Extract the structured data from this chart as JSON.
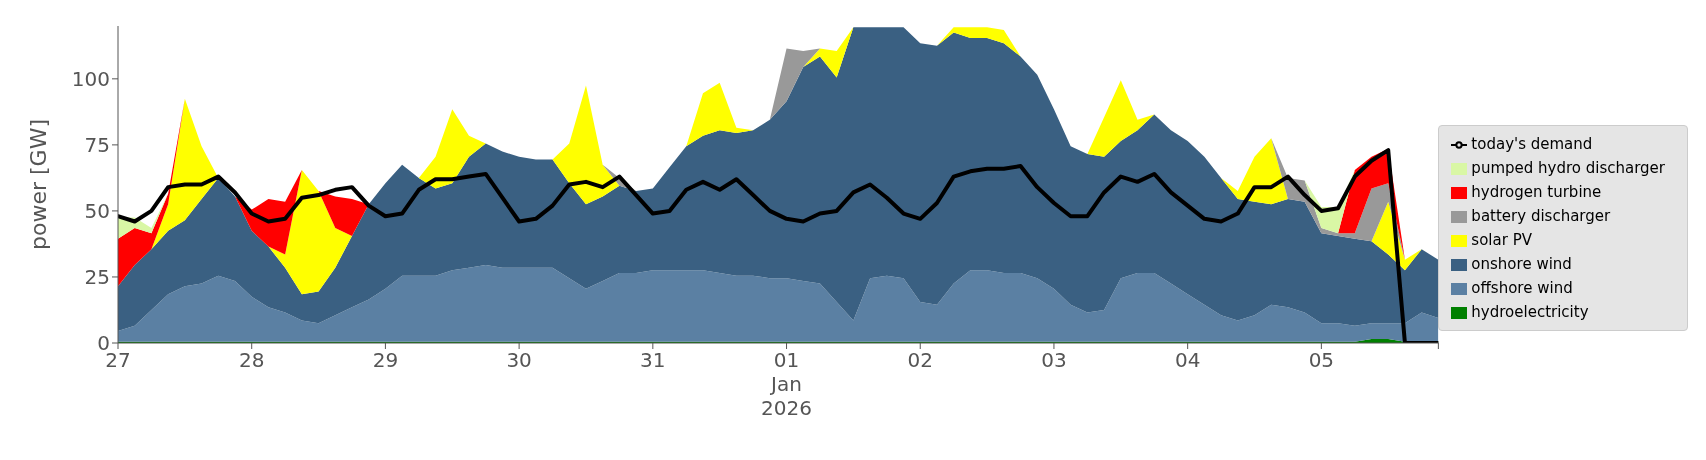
{
  "chart_data": {
    "type": "area",
    "stacked": true,
    "ylabel": "power [GW]",
    "legend": "right",
    "x": [
      "2025-12-27T00:00",
      "2025-12-27T03:00",
      "2025-12-27T06:00",
      "2025-12-27T09:00",
      "2025-12-27T12:00",
      "2025-12-27T15:00",
      "2025-12-27T18:00",
      "2025-12-27T21:00",
      "2025-12-28T00:00",
      "2025-12-28T03:00",
      "2025-12-28T06:00",
      "2025-12-28T09:00",
      "2025-12-28T12:00",
      "2025-12-28T15:00",
      "2025-12-28T18:00",
      "2025-12-28T21:00",
      "2025-12-29T00:00",
      "2025-12-29T03:00",
      "2025-12-29T06:00",
      "2025-12-29T09:00",
      "2025-12-29T12:00",
      "2025-12-29T15:00",
      "2025-12-29T18:00",
      "2025-12-29T21:00",
      "2025-12-30T00:00",
      "2025-12-30T03:00",
      "2025-12-30T06:00",
      "2025-12-30T09:00",
      "2025-12-30T12:00",
      "2025-12-30T15:00",
      "2025-12-30T18:00",
      "2025-12-30T21:00",
      "2025-12-31T00:00",
      "2025-12-31T03:00",
      "2025-12-31T06:00",
      "2025-12-31T09:00",
      "2025-12-31T12:00",
      "2025-12-31T15:00",
      "2025-12-31T18:00",
      "2025-12-31T21:00",
      "2026-01-01T00:00",
      "2026-01-01T03:00",
      "2026-01-01T06:00",
      "2026-01-01T09:00",
      "2026-01-01T12:00",
      "2026-01-01T15:00",
      "2026-01-01T18:00",
      "2026-01-01T21:00",
      "2026-01-02T00:00",
      "2026-01-02T03:00",
      "2026-01-02T06:00",
      "2026-01-02T09:00",
      "2026-01-02T12:00",
      "2026-01-02T15:00",
      "2026-01-02T18:00",
      "2026-01-02T21:00",
      "2026-01-03T00:00",
      "2026-01-03T03:00",
      "2026-01-03T06:00",
      "2026-01-03T09:00",
      "2026-01-03T12:00",
      "2026-01-03T15:00",
      "2026-01-03T18:00",
      "2026-01-03T21:00",
      "2026-01-04T00:00",
      "2026-01-04T03:00",
      "2026-01-04T06:00",
      "2026-01-04T09:00",
      "2026-01-04T12:00",
      "2026-01-04T15:00",
      "2026-01-04T18:00",
      "2026-01-04T21:00",
      "2026-01-05T00:00",
      "2026-01-05T03:00",
      "2026-01-05T06:00",
      "2026-01-05T09:00",
      "2026-01-05T12:00",
      "2026-01-05T15:00",
      "2026-01-05T18:00",
      "2026-01-05T21:00"
    ],
    "xlim": [
      "2025-12-27T00:00",
      "2026-01-05T21:00"
    ],
    "xticks": [
      {
        "value": "2025-12-27",
        "label": "27"
      },
      {
        "value": "2025-12-28",
        "label": "28"
      },
      {
        "value": "2025-12-29",
        "label": "29"
      },
      {
        "value": "2025-12-30",
        "label": "30"
      },
      {
        "value": "2025-12-31",
        "label": "31"
      },
      {
        "value": "2026-01-01",
        "label": "01\nJan\n2026"
      },
      {
        "value": "2026-01-02",
        "label": "02"
      },
      {
        "value": "2026-01-03",
        "label": "03"
      },
      {
        "value": "2026-01-04",
        "label": "04"
      },
      {
        "value": "2026-01-05",
        "label": "05"
      },
      {
        "value": "2026-01-05T21:00",
        "label": null
      }
    ],
    "ylim": [
      0,
      120
    ],
    "yticks": [
      0,
      25,
      50,
      75,
      100
    ],
    "series": [
      {
        "name": "hydroelectricity",
        "color": "#008000",
        "values": [
          0.5,
          0.5,
          0.5,
          0.5,
          0.5,
          0.5,
          0.5,
          0.5,
          0.5,
          0.5,
          0.5,
          0.5,
          0.5,
          0.5,
          0.5,
          0.5,
          0.5,
          0.5,
          0.5,
          0.5,
          0.5,
          0.5,
          0.5,
          0.5,
          0.5,
          0.5,
          0.5,
          0.5,
          0.5,
          0.5,
          0.5,
          0.5,
          0.5,
          0.5,
          0.5,
          0.5,
          0.5,
          0.5,
          0.5,
          0.5,
          0.5,
          0.5,
          0.5,
          0.5,
          0.5,
          0.5,
          0.5,
          0.5,
          0.5,
          0.5,
          0.5,
          0.5,
          0.5,
          0.5,
          0.5,
          0.5,
          0.5,
          0.5,
          0.5,
          0.5,
          0.5,
          0.5,
          0.5,
          0.5,
          0.5,
          0.5,
          0.5,
          0.5,
          0.5,
          0.5,
          0.5,
          0.5,
          0.5,
          0.5,
          0.5,
          1.5,
          1.5,
          0.5,
          0.5,
          0.5
        ]
      },
      {
        "name": "offshore wind",
        "color": "#5b80a3",
        "values": [
          4,
          6,
          12,
          18,
          21,
          22,
          25,
          23,
          17,
          13,
          11,
          8,
          7,
          10,
          13,
          16,
          20,
          25,
          25,
          25,
          27,
          28,
          29,
          28,
          28,
          28,
          28,
          24,
          20,
          23,
          26,
          26,
          27,
          27,
          27,
          27,
          26,
          25,
          25,
          24,
          24,
          23,
          22,
          15,
          8,
          24,
          25,
          24,
          15,
          14,
          22,
          27,
          27,
          26,
          26,
          24,
          20,
          14,
          11,
          12,
          24,
          26,
          26,
          22,
          18,
          14,
          10,
          8,
          10,
          14,
          13,
          11,
          7,
          7,
          6,
          6,
          6,
          7,
          11,
          9
        ]
      },
      {
        "name": "onshore wind",
        "color": "#3a6082",
        "values": [
          17,
          23,
          23,
          24,
          25,
          32,
          37,
          32,
          25,
          23,
          17,
          10,
          12,
          18,
          27,
          36,
          40,
          42,
          37,
          33,
          33,
          42,
          46,
          44,
          42,
          41,
          41,
          36,
          32,
          32,
          33,
          31,
          31,
          39,
          47,
          51,
          54,
          54,
          55,
          60,
          67,
          81,
          86,
          85,
          111,
          95,
          94,
          95,
          98,
          98,
          95,
          88,
          88,
          87,
          82,
          77,
          68,
          60,
          60,
          58,
          52,
          54,
          60,
          58,
          58,
          56,
          52,
          46,
          43,
          38,
          41,
          42,
          34,
          33,
          33,
          31,
          26,
          20,
          24,
          22
        ]
      },
      {
        "name": "solar PV",
        "color": "#ffff00",
        "values": [
          null,
          null,
          0,
          10,
          46,
          20,
          0,
          null,
          null,
          0,
          5,
          47,
          38,
          15,
          0,
          null,
          null,
          null,
          0,
          12,
          28,
          8,
          0,
          null,
          null,
          null,
          0,
          15,
          45,
          12,
          0,
          null,
          null,
          null,
          0,
          16,
          18,
          2,
          0,
          null,
          null,
          0,
          3,
          10,
          0,
          null,
          null,
          null,
          null,
          0,
          2,
          4,
          4,
          5,
          0,
          null,
          null,
          null,
          0,
          15,
          23,
          4,
          0,
          null,
          null,
          null,
          0,
          3,
          17,
          25,
          0,
          null,
          null,
          null,
          null,
          0,
          20,
          4,
          0,
          null
        ]
      },
      {
        "name": "battery discharger",
        "color": "#999999",
        "values": [
          null,
          null,
          null,
          null,
          null,
          null,
          null,
          null,
          null,
          null,
          null,
          null,
          null,
          null,
          null,
          null,
          null,
          null,
          null,
          null,
          null,
          null,
          null,
          null,
          null,
          null,
          null,
          null,
          null,
          0,
          3,
          0,
          null,
          null,
          null,
          null,
          null,
          null,
          null,
          0,
          20,
          6,
          0,
          null,
          null,
          null,
          null,
          null,
          null,
          null,
          null,
          null,
          null,
          null,
          null,
          null,
          null,
          null,
          null,
          null,
          null,
          null,
          null,
          null,
          null,
          null,
          null,
          null,
          null,
          0,
          8,
          8,
          2,
          1,
          2,
          20,
          7,
          0,
          null,
          null
        ]
      },
      {
        "name": "hydrogen turbine",
        "color": "#ff0000",
        "values": [
          18,
          14,
          6,
          4,
          0,
          null,
          null,
          0,
          8,
          18,
          20,
          0,
          0,
          12,
          14,
          0,
          null,
          null,
          null,
          null,
          null,
          null,
          null,
          null,
          null,
          null,
          null,
          null,
          null,
          null,
          null,
          null,
          null,
          null,
          null,
          null,
          null,
          null,
          null,
          null,
          null,
          null,
          null,
          null,
          null,
          null,
          null,
          null,
          null,
          null,
          null,
          null,
          null,
          null,
          null,
          null,
          null,
          null,
          null,
          null,
          null,
          null,
          null,
          null,
          null,
          null,
          null,
          null,
          null,
          null,
          null,
          null,
          null,
          0,
          24,
          12,
          13,
          0,
          null,
          null
        ]
      },
      {
        "name": "pumped hydro discharger",
        "color": "#d9f7a5",
        "values": [
          8,
          4,
          2,
          0,
          null,
          null,
          null,
          null,
          null,
          null,
          null,
          null,
          null,
          null,
          null,
          null,
          null,
          null,
          null,
          null,
          null,
          null,
          null,
          null,
          null,
          null,
          null,
          null,
          null,
          null,
          null,
          null,
          null,
          null,
          null,
          null,
          null,
          null,
          null,
          null,
          null,
          null,
          null,
          null,
          null,
          null,
          null,
          null,
          null,
          null,
          null,
          null,
          null,
          null,
          null,
          null,
          null,
          null,
          null,
          null,
          null,
          null,
          null,
          null,
          null,
          null,
          null,
          null,
          null,
          null,
          null,
          0,
          8,
          10,
          0,
          null,
          null,
          null,
          null,
          null
        ]
      },
      {
        "name": "today's demand",
        "type": "line",
        "color": "#000000",
        "values": [
          48,
          46,
          50,
          59,
          60,
          60,
          63,
          57,
          49,
          46,
          47,
          55,
          56,
          58,
          59,
          52,
          48,
          49,
          58,
          62,
          62,
          63,
          64,
          55,
          46,
          47,
          52,
          60,
          61,
          59,
          63,
          56,
          49,
          50,
          58,
          61,
          58,
          62,
          56,
          50,
          47,
          46,
          49,
          50,
          57,
          60,
          55,
          49,
          47,
          53,
          63,
          65,
          66,
          66,
          67,
          59,
          53,
          48,
          48,
          57,
          63,
          61,
          64,
          57,
          52,
          47,
          46,
          49,
          59,
          59,
          63,
          56,
          50,
          51,
          63,
          69,
          73,
          0,
          0,
          0
        ]
      }
    ]
  }
}
